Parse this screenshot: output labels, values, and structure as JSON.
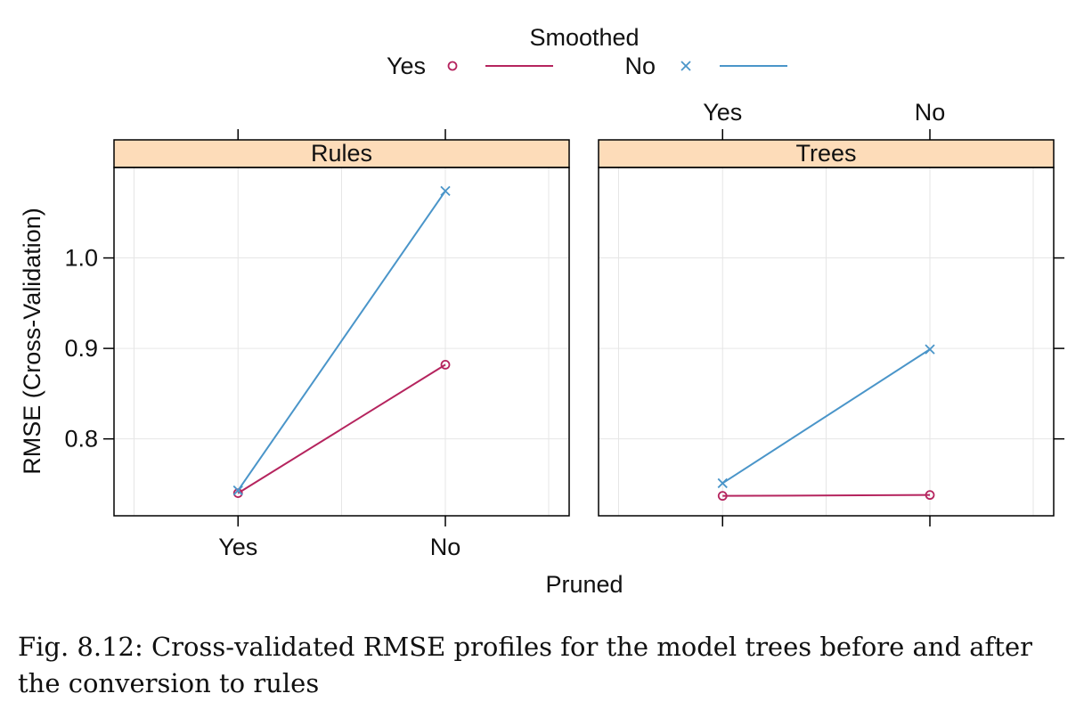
{
  "legend": {
    "title": "Smoothed",
    "items": [
      {
        "label": "Yes",
        "marker": "circle",
        "color": "#B5245E"
      },
      {
        "label": "No",
        "marker": "cross",
        "color": "#4A95C9"
      }
    ]
  },
  "strip_color": "#FDDCB9",
  "grid_color": "#E6E6E6",
  "chart_data": {
    "type": "line",
    "xlabel": "Pruned",
    "ylabel": "RMSE (Cross-Validation)",
    "categories": [
      "Yes",
      "No"
    ],
    "ylim": [
      0.715,
      1.1
    ],
    "y_ticks": [
      0.8,
      0.9,
      1.0
    ],
    "y_tick_labels": [
      "0.8",
      "0.9",
      "1.0"
    ],
    "grid": true,
    "legend_position": "top",
    "panels": [
      {
        "title": "Rules",
        "series": [
          {
            "name": "Yes",
            "values": [
              0.74,
              0.882
            ]
          },
          {
            "name": "No",
            "values": [
              0.743,
              1.074
            ]
          }
        ]
      },
      {
        "title": "Trees",
        "series": [
          {
            "name": "Yes",
            "values": [
              0.737,
              0.738
            ]
          },
          {
            "name": "No",
            "values": [
              0.751,
              0.899
            ]
          }
        ]
      }
    ]
  },
  "caption": "Fig. 8.12: Cross-validated RMSE profiles for the model trees before and after the conversion to rules"
}
